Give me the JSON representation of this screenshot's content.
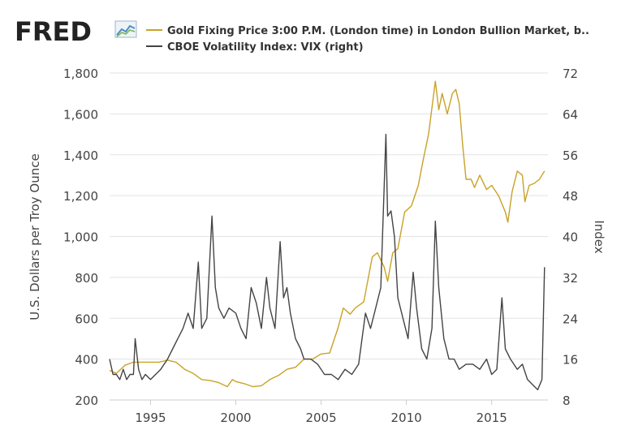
{
  "logo": {
    "text": "FRED",
    "icon": "trend-line-icon"
  },
  "chart_data": {
    "type": "line",
    "x_ticks": [
      1995,
      2000,
      2005,
      2010,
      2015
    ],
    "xlim": [
      1992.6,
      2018.3
    ],
    "ylabel": "U.S. Dollars per Troy Ounce",
    "ylabel_right": "Index",
    "ylim": [
      200,
      1800
    ],
    "ylim_right": [
      8,
      72
    ],
    "y_ticks": [
      "1,800",
      "1,600",
      "1,400",
      "1,200",
      "1,000",
      "800",
      "600",
      "400",
      "200"
    ],
    "y_tick_values": [
      1800,
      1600,
      1400,
      1200,
      1000,
      800,
      600,
      400,
      200
    ],
    "y_ticks_right": [
      "72",
      "64",
      "56",
      "48",
      "40",
      "32",
      "24",
      "16",
      "8"
    ],
    "y_tick_values_right": [
      72,
      64,
      56,
      48,
      40,
      32,
      24,
      16,
      8
    ],
    "grid": true,
    "legend_position": "top",
    "series": [
      {
        "name": "Gold Fixing Price 3:00 P.M. (London time) in London Bullion Market, b..",
        "axis": "left",
        "color": "#c9a227",
        "x": [
          1992.6,
          1993.0,
          1993.5,
          1994.0,
          1994.5,
          1995.0,
          1995.5,
          1996.0,
          1996.5,
          1997.0,
          1997.5,
          1998.0,
          1998.5,
          1999.0,
          1999.5,
          1999.8,
          2000.0,
          2000.5,
          2001.0,
          2001.5,
          2002.0,
          2002.5,
          2003.0,
          2003.5,
          2004.0,
          2004.5,
          2005.0,
          2005.5,
          2006.0,
          2006.3,
          2006.7,
          2007.0,
          2007.5,
          2008.0,
          2008.3,
          2008.7,
          2008.9,
          2009.2,
          2009.5,
          2009.9,
          2010.3,
          2010.7,
          2011.0,
          2011.3,
          2011.7,
          2011.9,
          2012.1,
          2012.4,
          2012.7,
          2012.9,
          2013.1,
          2013.3,
          2013.5,
          2013.8,
          2014.0,
          2014.3,
          2014.7,
          2015.0,
          2015.4,
          2015.8,
          2015.95,
          2016.2,
          2016.5,
          2016.8,
          2016.95,
          2017.2,
          2017.5,
          2017.8,
          2018.1
        ],
        "values": [
          345,
          330,
          370,
          385,
          385,
          385,
          385,
          395,
          385,
          350,
          330,
          300,
          295,
          285,
          265,
          300,
          290,
          280,
          265,
          270,
          300,
          320,
          350,
          360,
          400,
          400,
          425,
          430,
          555,
          650,
          620,
          650,
          680,
          900,
          920,
          850,
          780,
          920,
          940,
          1120,
          1150,
          1250,
          1380,
          1500,
          1760,
          1620,
          1700,
          1600,
          1700,
          1720,
          1650,
          1450,
          1280,
          1280,
          1240,
          1300,
          1230,
          1250,
          1200,
          1120,
          1070,
          1220,
          1320,
          1300,
          1170,
          1250,
          1260,
          1280,
          1320
        ]
      },
      {
        "name": "CBOE Volatility Index: VIX (right)",
        "axis": "right",
        "color": "#444444",
        "x": [
          1992.6,
          1992.8,
          1993.0,
          1993.2,
          1993.4,
          1993.6,
          1993.8,
          1994.0,
          1994.1,
          1994.3,
          1994.5,
          1994.7,
          1995.0,
          1995.3,
          1995.6,
          1996.0,
          1996.3,
          1996.6,
          1996.9,
          1997.2,
          1997.5,
          1997.8,
          1998.0,
          1998.3,
          1998.6,
          1998.8,
          1999.0,
          1999.3,
          1999.6,
          2000.0,
          2000.3,
          2000.6,
          2000.9,
          2001.2,
          2001.5,
          2001.8,
          2002.0,
          2002.3,
          2002.6,
          2002.8,
          2003.0,
          2003.2,
          2003.5,
          2003.8,
          2004.0,
          2004.4,
          2004.8,
          2005.2,
          2005.6,
          2006.0,
          2006.4,
          2006.8,
          2007.2,
          2007.6,
          2007.9,
          2008.2,
          2008.5,
          2008.8,
          2008.9,
          2009.1,
          2009.3,
          2009.5,
          2009.8,
          2010.1,
          2010.4,
          2010.6,
          2010.9,
          2011.2,
          2011.5,
          2011.7,
          2011.9,
          2012.2,
          2012.5,
          2012.8,
          2013.1,
          2013.5,
          2013.9,
          2014.3,
          2014.7,
          2015.0,
          2015.3,
          2015.6,
          2015.8,
          2016.1,
          2016.5,
          2016.8,
          2017.1,
          2017.4,
          2017.7,
          2017.95,
          2018.1
        ],
        "values": [
          16,
          13,
          13,
          12,
          14,
          12,
          13,
          13,
          20,
          14,
          12,
          13,
          12,
          13,
          14,
          16,
          18,
          20,
          22,
          25,
          22,
          35,
          22,
          24,
          44,
          30,
          26,
          24,
          26,
          25,
          22,
          20,
          30,
          27,
          22,
          32,
          26,
          22,
          39,
          28,
          30,
          25,
          20,
          18,
          16,
          16,
          15,
          13,
          13,
          12,
          14,
          13,
          15,
          25,
          22,
          26,
          30,
          60,
          44,
          45,
          40,
          28,
          24,
          20,
          33,
          26,
          18,
          16,
          22,
          43,
          30,
          20,
          16,
          16,
          14,
          15,
          15,
          14,
          16,
          13,
          14,
          28,
          18,
          16,
          14,
          15,
          12,
          11,
          10,
          12,
          34
        ]
      }
    ]
  }
}
